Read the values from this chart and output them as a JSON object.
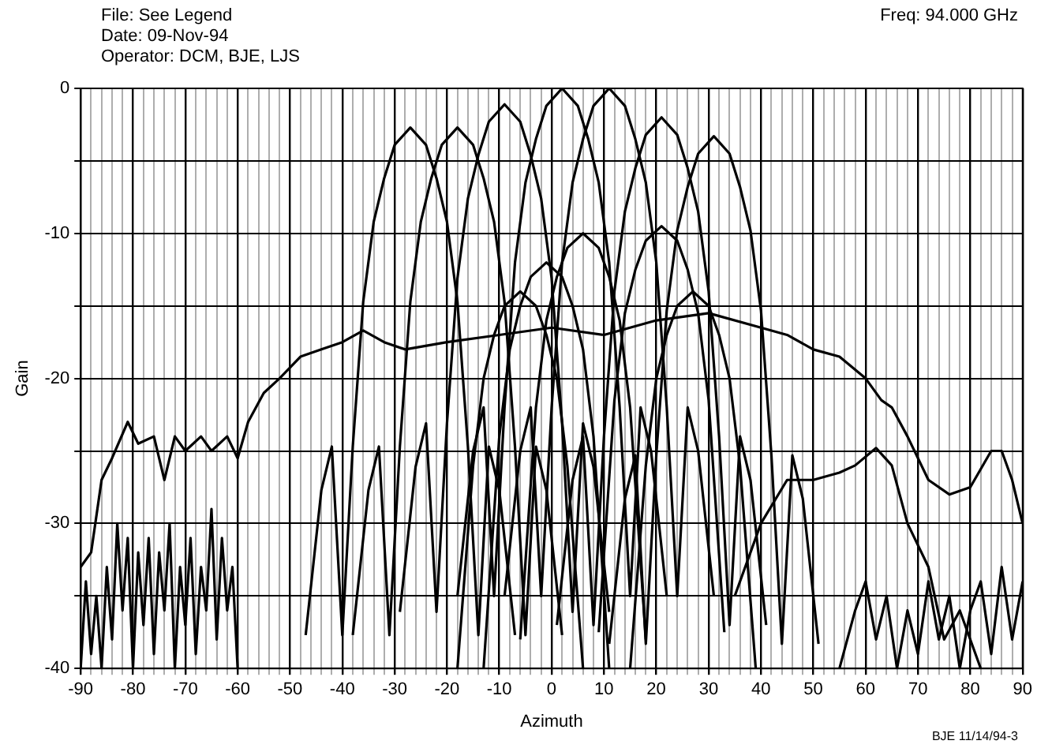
{
  "chart_data": {
    "type": "line",
    "xlabel": "Azimuth",
    "ylabel": "Gain",
    "annotations": [
      "File: See Legend",
      "Date: 09-Nov-94",
      "Operator: DCM, BJE, LJS",
      "Freq: 94.000 GHz",
      "BJE 11/14/94-3"
    ],
    "xlim": [
      -90,
      90
    ],
    "ylim": [
      -40,
      0
    ],
    "xticks": [
      -90,
      {
        "value": -88,
        "label": null
      },
      {
        "value": -86,
        "label": null
      },
      {
        "value": -84,
        "label": null
      },
      {
        "value": -82,
        "label": null
      },
      -80,
      {
        "value": -78,
        "label": null
      },
      {
        "value": -76,
        "label": null
      },
      {
        "value": -74,
        "label": null
      },
      {
        "value": -72,
        "label": null
      },
      -70,
      {
        "value": -68,
        "label": null
      },
      {
        "value": -66,
        "label": null
      },
      {
        "value": -64,
        "label": null
      },
      {
        "value": -62,
        "label": null
      },
      -60,
      {
        "value": -58,
        "label": null
      },
      {
        "value": -56,
        "label": null
      },
      {
        "value": -54,
        "label": null
      },
      {
        "value": -52,
        "label": null
      },
      -50,
      {
        "value": -48,
        "label": null
      },
      {
        "value": -46,
        "label": null
      },
      {
        "value": -44,
        "label": null
      },
      {
        "value": -42,
        "label": null
      },
      -40,
      {
        "value": -38,
        "label": null
      },
      {
        "value": -36,
        "label": null
      },
      {
        "value": -34,
        "label": null
      },
      {
        "value": -32,
        "label": null
      },
      -30,
      {
        "value": -28,
        "label": null
      },
      {
        "value": -26,
        "label": null
      },
      {
        "value": -24,
        "label": null
      },
      {
        "value": -22,
        "label": null
      },
      -20,
      {
        "value": -18,
        "label": null
      },
      {
        "value": -16,
        "label": null
      },
      {
        "value": -14,
        "label": null
      },
      {
        "value": -12,
        "label": null
      },
      -10,
      {
        "value": -8,
        "label": null
      },
      {
        "value": -6,
        "label": null
      },
      {
        "value": -4,
        "label": null
      },
      {
        "value": -2,
        "label": null
      },
      0,
      {
        "value": 2,
        "label": null
      },
      {
        "value": 4,
        "label": null
      },
      {
        "value": 6,
        "label": null
      },
      {
        "value": 8,
        "label": null
      },
      10,
      {
        "value": 12,
        "label": null
      },
      {
        "value": 14,
        "label": null
      },
      {
        "value": 16,
        "label": null
      },
      {
        "value": 18,
        "label": null
      },
      20,
      {
        "value": 22,
        "label": null
      },
      {
        "value": 24,
        "label": null
      },
      {
        "value": 26,
        "label": null
      },
      {
        "value": 28,
        "label": null
      },
      30,
      {
        "value": 32,
        "label": null
      },
      {
        "value": 34,
        "label": null
      },
      {
        "value": 36,
        "label": null
      },
      {
        "value": 38,
        "label": null
      },
      40,
      {
        "value": 42,
        "label": null
      },
      {
        "value": 44,
        "label": null
      },
      {
        "value": 46,
        "label": null
      },
      {
        "value": 48,
        "label": null
      },
      50,
      {
        "value": 52,
        "label": null
      },
      {
        "value": 54,
        "label": null
      },
      {
        "value": 56,
        "label": null
      },
      {
        "value": 58,
        "label": null
      },
      60,
      {
        "value": 62,
        "label": null
      },
      {
        "value": 64,
        "label": null
      },
      {
        "value": 66,
        "label": null
      },
      {
        "value": 68,
        "label": null
      },
      70,
      {
        "value": 72,
        "label": null
      },
      {
        "value": 74,
        "label": null
      },
      {
        "value": 76,
        "label": null
      },
      {
        "value": 78,
        "label": null
      },
      80,
      {
        "value": 82,
        "label": null
      },
      {
        "value": 84,
        "label": null
      },
      {
        "value": 86,
        "label": null
      },
      {
        "value": 88,
        "label": null
      },
      90
    ],
    "yticks": [
      -40,
      {
        "value": -35,
        "label": null
      },
      -30,
      {
        "value": -25,
        "label": null
      },
      -20,
      {
        "value": -15,
        "label": null
      },
      -10,
      {
        "value": -5,
        "label": null
      },
      0
    ],
    "grid": true,
    "legend": false,
    "marker": "none",
    "line_style": "solid",
    "series": [
      {
        "color": "#000000",
        "x": [
          -47,
          -44,
          -42,
          -40,
          -38,
          -36,
          -34,
          -32,
          -30,
          -27,
          -24,
          -22,
          -20,
          -18,
          -16,
          -14,
          -12,
          -10,
          -7
        ],
        "values": [
          -37.7,
          -27.7,
          -24.7,
          -37.7,
          -24.7,
          -14.7,
          -9.2,
          -6.2,
          -3.9,
          -2.7,
          -3.9,
          -6.2,
          -9.2,
          -14.7,
          -24.7,
          -37.7,
          -24.7,
          -27.7,
          -37.7
        ]
      },
      {
        "color": "#000000",
        "x": [
          -38,
          -35,
          -33,
          -31,
          -29,
          -27,
          -25,
          -23,
          -21,
          -18,
          -15,
          -13,
          -11,
          -9,
          -7,
          -5,
          -3,
          -1,
          2
        ],
        "values": [
          -37.7,
          -27.7,
          -24.7,
          -37.7,
          -24.7,
          -14.7,
          -9.2,
          -6.2,
          -3.9,
          -2.7,
          -3.9,
          -6.2,
          -9.2,
          -14.7,
          -24.7,
          -37.7,
          -24.7,
          -27.7,
          -37.7
        ]
      },
      {
        "color": "#000000",
        "x": [
          -29,
          -26,
          -24,
          -22,
          -20,
          -18,
          -16,
          -14,
          -12,
          -9,
          -6,
          -4,
          -2,
          0,
          2,
          4,
          6,
          8,
          11
        ],
        "values": [
          -36.1,
          -26.1,
          -23.1,
          -36.1,
          -23.1,
          -13.1,
          -7.6,
          -4.6,
          -2.3,
          -1.1,
          -2.3,
          -4.6,
          -7.6,
          -13.1,
          -23.1,
          -36.1,
          -23.1,
          -26.1,
          -36.1
        ]
      },
      {
        "color": "#000000",
        "x": [
          -18,
          -15,
          -13,
          -11,
          -9,
          -7,
          -5,
          -3,
          -1,
          2,
          5,
          7,
          9,
          11,
          13,
          15,
          17,
          19,
          22
        ],
        "values": [
          -35,
          -25,
          -22,
          -35,
          -22,
          -12,
          -6.5,
          -3.5,
          -1.2,
          0,
          -1.2,
          -3.5,
          -6.5,
          -12,
          -22,
          -35,
          -22,
          -25,
          -35
        ]
      },
      {
        "color": "#000000",
        "x": [
          -9,
          -6,
          -4,
          -2,
          0,
          2,
          4,
          6,
          8,
          11,
          14,
          16,
          18,
          20,
          22,
          24,
          26,
          28,
          31
        ],
        "values": [
          -35,
          -25,
          -22,
          -35,
          -22,
          -12,
          -6.5,
          -3.5,
          -1.2,
          0,
          -1.2,
          -3.5,
          -6.5,
          -12,
          -22,
          -35,
          -22,
          -25,
          -35
        ]
      },
      {
        "color": "#000000",
        "x": [
          1,
          4,
          6,
          8,
          10,
          12,
          14,
          16,
          18,
          21,
          24,
          26,
          28,
          30,
          32,
          34,
          36,
          38,
          41
        ],
        "values": [
          -37,
          -27,
          -24,
          -37,
          -24,
          -14,
          -8.5,
          -5.5,
          -3.2,
          -2,
          -3.2,
          -5.5,
          -8.5,
          -14,
          -24,
          -37,
          -24,
          -27,
          -37
        ]
      },
      {
        "color": "#000000",
        "x": [
          11,
          14,
          16,
          18,
          20,
          22,
          24,
          26,
          28,
          31,
          34,
          36,
          38,
          40,
          42,
          44,
          46,
          48,
          51
        ],
        "values": [
          -38.3,
          -28.3,
          -25.3,
          -38.3,
          -25.3,
          -15.3,
          -9.8,
          -6.8,
          -4.5,
          -3.3,
          -4.5,
          -6.8,
          -9.8,
          -15.3,
          -25.3,
          -38.3,
          -25.3,
          -28.3,
          -38.3
        ]
      },
      {
        "color": "#000000",
        "x": [
          -13,
          -10,
          -8,
          -6,
          -4,
          -1,
          2,
          4,
          6,
          8,
          11
        ],
        "values": [
          -40,
          -24,
          -18,
          -15,
          -13,
          -12,
          -13,
          -15,
          -18,
          -24,
          -40
        ]
      },
      {
        "color": "#000000",
        "x": [
          -6,
          -3,
          -1,
          1,
          3,
          6,
          9,
          11,
          13,
          15,
          18
        ],
        "values": [
          -38,
          -22,
          -16,
          -13,
          -11,
          -10,
          -11,
          -13,
          -16,
          -22,
          -38
        ]
      },
      {
        "color": "#000000",
        "x": [
          9,
          12,
          14,
          16,
          18,
          21,
          24,
          26,
          28,
          30,
          33
        ],
        "values": [
          -37.5,
          -21.5,
          -15.5,
          -12.5,
          -10.5,
          -9.5,
          -10.5,
          -12.5,
          -15.5,
          -21.5,
          -37.5
        ]
      },
      {
        "color": "#000000",
        "x": [
          15,
          18,
          20,
          22,
          24,
          27,
          30,
          32,
          34,
          36,
          39
        ],
        "values": [
          -40,
          -26,
          -20,
          -17,
          -15,
          -14,
          -15,
          -17,
          -20,
          -26,
          -40
        ]
      },
      {
        "color": "#000000",
        "x": [
          -18,
          -15,
          -13,
          -11,
          -9,
          -6,
          -3,
          -1,
          1,
          3,
          6
        ],
        "values": [
          -40,
          -26,
          -20,
          -17,
          -15,
          -14,
          -15,
          -17,
          -20,
          -26,
          -40
        ]
      },
      {
        "color": "#000000",
        "x": [
          -90,
          -88,
          -86,
          -84,
          -81,
          -79,
          -76,
          -74,
          -72,
          -70,
          -67,
          -65,
          -62,
          -60,
          -58,
          -55,
          -52,
          -48,
          -44,
          -40,
          -36,
          -32,
          -28,
          -20,
          -10,
          0,
          10,
          20,
          30,
          40,
          45,
          50,
          55,
          60,
          63,
          65,
          68,
          72,
          76,
          80,
          84,
          86,
          88,
          90
        ],
        "values": [
          -33,
          -32,
          -27,
          -25.5,
          -23,
          -24.5,
          -24,
          -27,
          -24,
          -25,
          -24,
          -25,
          -24,
          -25.5,
          -23,
          -21,
          -20,
          -18.5,
          -18,
          -17.5,
          -16.7,
          -17.5,
          -18,
          -17.5,
          -17,
          -16.5,
          -17,
          -16,
          -15.5,
          -16.5,
          -17,
          -18,
          -18.5,
          -20,
          -21.5,
          -22,
          -24,
          -27,
          -28,
          -27.5,
          -25,
          -25,
          -27,
          -30
        ]
      },
      {
        "color": "#000000",
        "x": [
          35,
          40,
          45,
          50,
          55,
          58,
          62,
          65,
          68,
          72,
          75,
          78,
          82
        ],
        "values": [
          -35,
          -30,
          -27,
          -27,
          -26.5,
          -26,
          -24.8,
          -26,
          -30,
          -33,
          -38,
          -36,
          -40
        ]
      },
      {
        "color": "#000000",
        "x": [
          -90,
          -89,
          -88,
          -87,
          -86,
          -85,
          -84,
          -83,
          -82,
          -81,
          -80,
          -79,
          -78,
          -77,
          -76,
          -75,
          -74,
          -73,
          -72,
          -71,
          -70,
          -69,
          -68,
          -67,
          -66,
          -65,
          -64,
          -63,
          -62,
          -61,
          -60
        ],
        "values": [
          -40,
          -34,
          -39,
          -35,
          -40,
          -33,
          -38,
          -30,
          -36,
          -31,
          -40,
          -32,
          -37,
          -31,
          -39,
          -32,
          -36,
          -30,
          -40,
          -33,
          -37,
          -31,
          -39,
          -33,
          -36,
          -29,
          -38,
          -31,
          -36,
          -33,
          -40
        ]
      },
      {
        "color": "#000000",
        "x": [
          55,
          58,
          60,
          62,
          64,
          66,
          68,
          70,
          72,
          74,
          76,
          78,
          80,
          82,
          84,
          86,
          88,
          90
        ],
        "values": [
          -40,
          -36,
          -34,
          -38,
          -35,
          -40,
          -36,
          -39,
          -34,
          -38,
          -35,
          -40,
          -36,
          -34,
          -39,
          -33,
          -38,
          -34
        ]
      }
    ]
  }
}
